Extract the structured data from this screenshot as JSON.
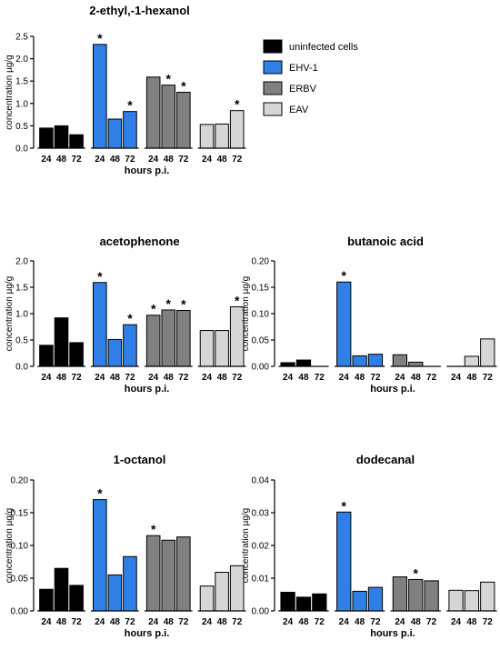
{
  "legend": [
    {
      "name": "uninfected cells",
      "color": "#000000"
    },
    {
      "name": "EHV-1",
      "color": "#2f7fe6"
    },
    {
      "name": "ERBV",
      "color": "#808080"
    },
    {
      "name": "EAV",
      "color": "#d6d6d6"
    }
  ],
  "chart_data": [
    {
      "type": "bar",
      "title": "2-ethyl,-1-hexanol",
      "ylabel": "concentration µg/g",
      "xlabel": "hours p.i.",
      "ylim": [
        0,
        2.5
      ],
      "yticks": [
        "0.0",
        "0.5",
        "1.0",
        "1.5",
        "2.0",
        "2.5"
      ],
      "categories": [
        "24",
        "48",
        "72"
      ],
      "series": [
        {
          "name": "uninfected cells",
          "values": [
            0.45,
            0.5,
            0.3
          ],
          "stars": [
            false,
            false,
            false
          ]
        },
        {
          "name": "EHV-1",
          "values": [
            2.32,
            0.65,
            0.82
          ],
          "stars": [
            true,
            false,
            true
          ]
        },
        {
          "name": "ERBV",
          "values": [
            1.59,
            1.41,
            1.25
          ],
          "stars": [
            false,
            true,
            true
          ]
        },
        {
          "name": "EAV",
          "values": [
            0.53,
            0.54,
            0.84
          ],
          "stars": [
            false,
            false,
            true
          ]
        }
      ]
    },
    {
      "type": "bar",
      "title": "acetophenone",
      "ylabel": "concentration µg/g",
      "xlabel": "hours p.i.",
      "ylim": [
        0,
        2.0
      ],
      "yticks": [
        "0.0",
        "0.5",
        "1.0",
        "1.5",
        "2.0"
      ],
      "categories": [
        "24",
        "48",
        "72"
      ],
      "series": [
        {
          "name": "uninfected cells",
          "values": [
            0.4,
            0.92,
            0.45
          ],
          "stars": [
            false,
            false,
            false
          ]
        },
        {
          "name": "EHV-1",
          "values": [
            1.59,
            0.51,
            0.79
          ],
          "stars": [
            true,
            false,
            true
          ]
        },
        {
          "name": "ERBV",
          "values": [
            0.97,
            1.07,
            1.06
          ],
          "stars": [
            true,
            true,
            true
          ]
        },
        {
          "name": "EAV",
          "values": [
            0.68,
            0.68,
            1.13
          ],
          "stars": [
            false,
            false,
            true
          ]
        }
      ]
    },
    {
      "type": "bar",
      "title": "butanoic acid",
      "ylabel": "concentration µg/g",
      "xlabel": "hours p.i.",
      "ylim": [
        0,
        0.2
      ],
      "yticks": [
        "0.00",
        "0.05",
        "0.10",
        "0.15",
        "0.20"
      ],
      "categories": [
        "24",
        "48",
        "72"
      ],
      "series": [
        {
          "name": "uninfected cells",
          "values": [
            0.007,
            0.012,
            0.0
          ],
          "stars": [
            false,
            false,
            false
          ]
        },
        {
          "name": "EHV-1",
          "values": [
            0.16,
            0.02,
            0.023
          ],
          "stars": [
            true,
            false,
            false
          ]
        },
        {
          "name": "ERBV",
          "values": [
            0.022,
            0.008,
            0.0
          ],
          "stars": [
            false,
            false,
            false
          ]
        },
        {
          "name": "EAV",
          "values": [
            0.0,
            0.019,
            0.052
          ],
          "stars": [
            false,
            false,
            false
          ]
        }
      ]
    },
    {
      "type": "bar",
      "title": "1-octanol",
      "ylabel": "concentration µg/g",
      "xlabel": "hours p.i.",
      "ylim": [
        0,
        0.2
      ],
      "yticks": [
        "0.00",
        "0.05",
        "0.10",
        "0.15",
        "0.20"
      ],
      "categories": [
        "24",
        "48",
        "72"
      ],
      "series": [
        {
          "name": "uninfected cells",
          "values": [
            0.033,
            0.065,
            0.039
          ],
          "stars": [
            false,
            false,
            false
          ]
        },
        {
          "name": "EHV-1",
          "values": [
            0.17,
            0.055,
            0.083
          ],
          "stars": [
            true,
            false,
            false
          ]
        },
        {
          "name": "ERBV",
          "values": [
            0.115,
            0.108,
            0.113
          ],
          "stars": [
            true,
            false,
            false
          ]
        },
        {
          "name": "EAV",
          "values": [
            0.038,
            0.059,
            0.069
          ],
          "stars": [
            false,
            false,
            false
          ]
        }
      ]
    },
    {
      "type": "bar",
      "title": "dodecanal",
      "ylabel": "concentration µg/g",
      "xlabel": "hours p.i.",
      "ylim": [
        0,
        0.04
      ],
      "yticks": [
        "0.00",
        "0.01",
        "0.02",
        "0.03",
        "0.04"
      ],
      "categories": [
        "24",
        "48",
        "72"
      ],
      "series": [
        {
          "name": "uninfected cells",
          "values": [
            0.0057,
            0.0042,
            0.0052
          ],
          "stars": [
            false,
            false,
            false
          ]
        },
        {
          "name": "EHV-1",
          "values": [
            0.0302,
            0.006,
            0.0072
          ],
          "stars": [
            true,
            false,
            false
          ]
        },
        {
          "name": "ERBV",
          "values": [
            0.0104,
            0.0096,
            0.0092
          ],
          "stars": [
            false,
            true,
            false
          ]
        },
        {
          "name": "EAV",
          "values": [
            0.0063,
            0.0062,
            0.0088
          ],
          "stars": [
            false,
            false,
            false
          ]
        }
      ]
    }
  ]
}
